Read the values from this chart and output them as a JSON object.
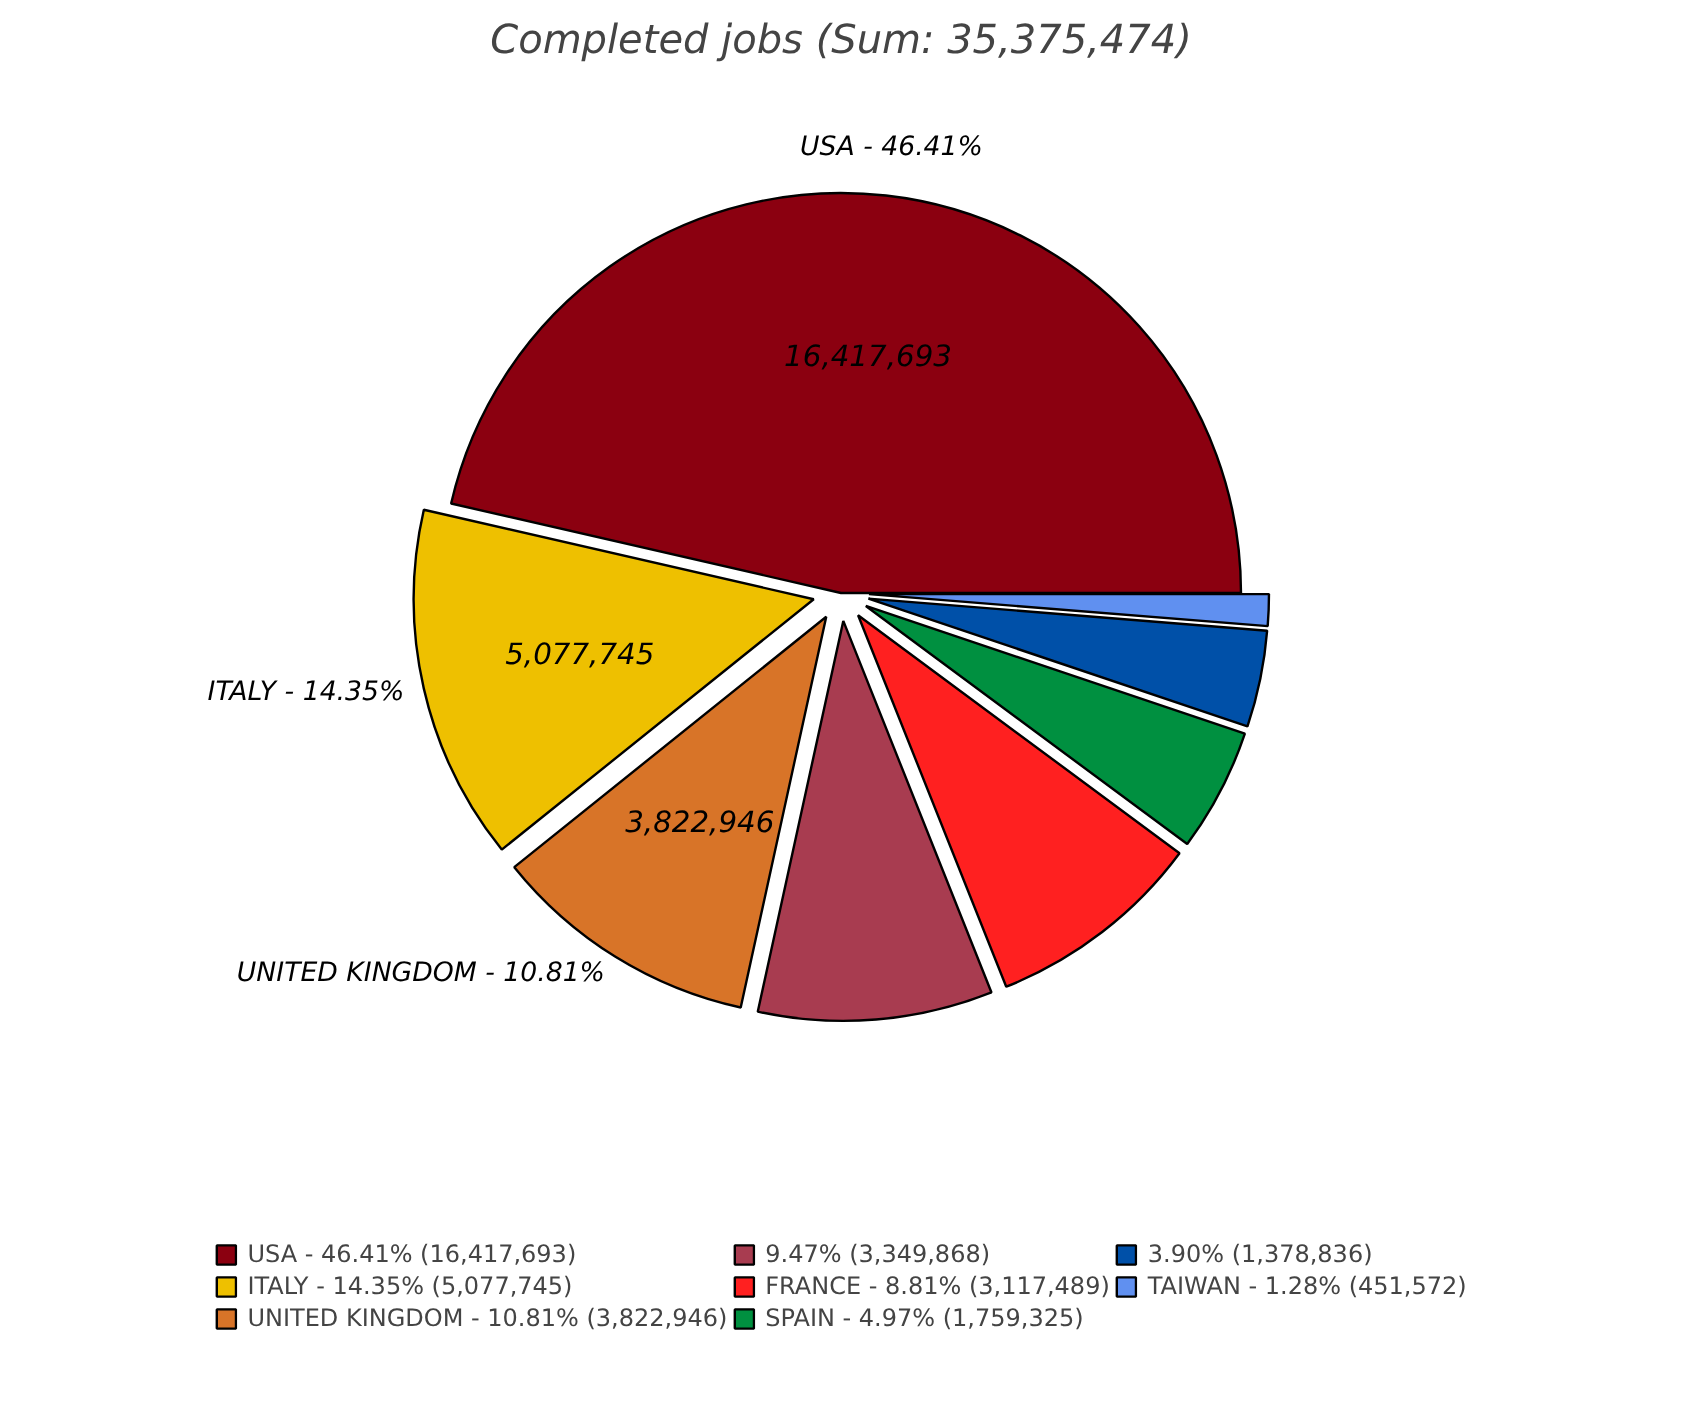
{
  "chart_data": {
    "type": "pie",
    "title": "Completed jobs (Sum: 35,375,474)",
    "categories": [
      "USA - 46.41% (16,417,693)",
      "ITALY - 14.35% (5,077,745)",
      "UNITED KINGDOM - 10.81% (3,822,946)",
      "9.47% (3,349,868)",
      "FRANCE - 8.81% (3,117,489)",
      "SPAIN - 4.97% (1,759,325)",
      "3.90% (1,378,836)",
      "TAIWAN - 1.28% (451,572)"
    ],
    "values": [
      16417693,
      5077745,
      3822946,
      3349868,
      3117489,
      1759325,
      1378836,
      451572
    ],
    "colors": [
      "#8b0010",
      "#eec000",
      "#d87428",
      "#a83c50",
      "#ff2020",
      "#009040",
      "#0050a8",
      "#6090f0"
    ],
    "value_labels": [
      "16,417,693",
      "5,077,745",
      "3,822,946",
      null,
      null,
      null,
      null,
      null
    ],
    "annotations": [
      "USA - 46.41%",
      "ITALY - 14.35%",
      "UNITED KINGDOM - 10.81%"
    ],
    "legend": "bottom"
  }
}
